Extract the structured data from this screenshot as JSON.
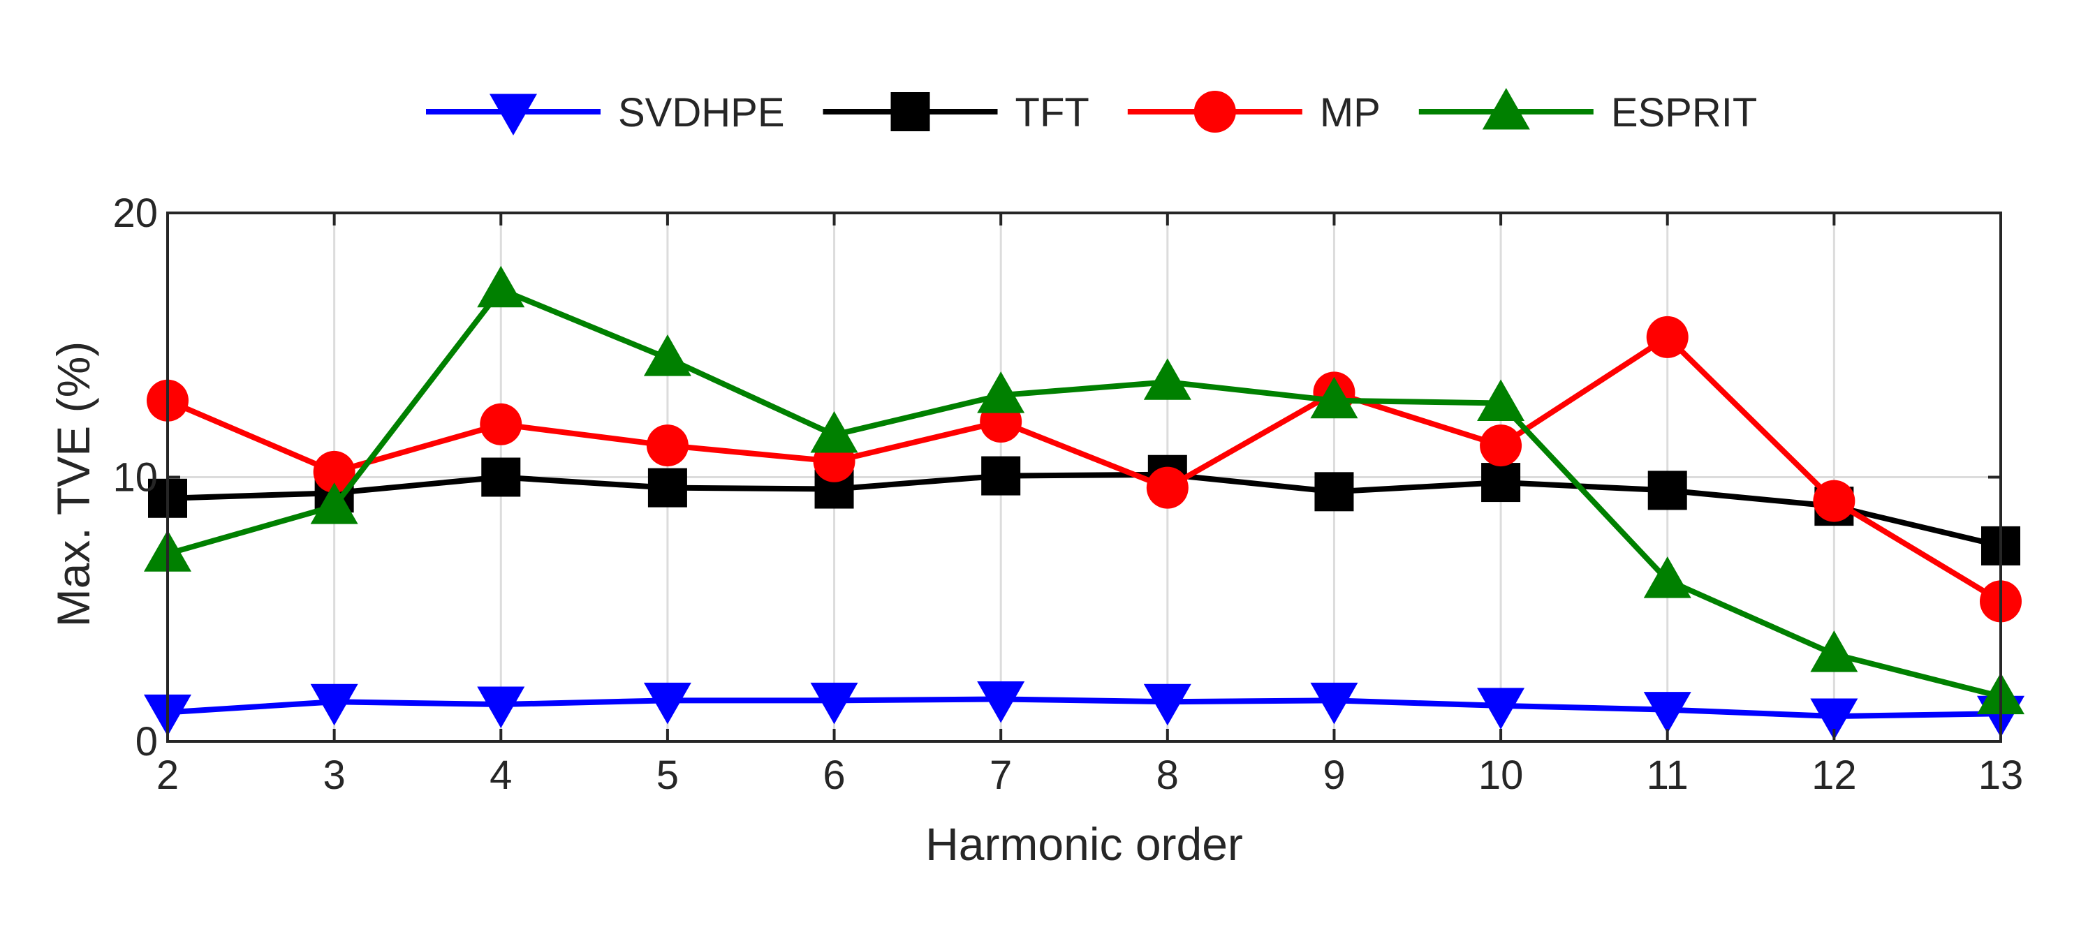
{
  "chart_data": {
    "type": "line",
    "title": "",
    "xlabel": "Harmonic order",
    "ylabel": "Max. TVE (%)",
    "x": [
      2,
      3,
      4,
      5,
      6,
      7,
      8,
      9,
      10,
      11,
      12,
      13
    ],
    "xlim": [
      2,
      13
    ],
    "ylim": [
      0,
      20
    ],
    "yticks": [
      0,
      10,
      20
    ],
    "grid": "vertical and horizontal at ticks",
    "legend_position": "top, horizontal, outside plot",
    "series": [
      {
        "name": "SVDHPE",
        "color": "#0000ff",
        "marker": "triangle-down",
        "values": [
          1.1,
          1.5,
          1.4,
          1.55,
          1.55,
          1.6,
          1.5,
          1.55,
          1.35,
          1.2,
          0.95,
          1.05
        ]
      },
      {
        "name": "TFT",
        "color": "#000000",
        "marker": "square",
        "values": [
          9.2,
          9.4,
          10.0,
          9.6,
          9.55,
          10.05,
          10.1,
          9.45,
          9.8,
          9.5,
          8.9,
          7.4
        ]
      },
      {
        "name": "MP",
        "color": "#ff0000",
        "marker": "circle",
        "values": [
          12.9,
          10.2,
          12.0,
          11.2,
          10.6,
          12.1,
          9.6,
          13.2,
          11.2,
          15.3,
          9.1,
          5.3
        ]
      },
      {
        "name": "ESPRIT",
        "color": "#008000",
        "marker": "triangle-up",
        "values": [
          7.1,
          8.9,
          17.1,
          14.5,
          11.6,
          13.1,
          13.6,
          12.9,
          12.8,
          6.1,
          3.3,
          1.7
        ]
      }
    ]
  }
}
